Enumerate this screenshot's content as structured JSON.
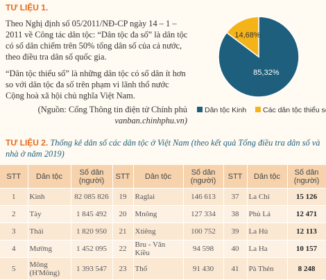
{
  "section1": {
    "title": "TƯ LIỆU 1.",
    "paragraphs": [
      "Theo Nghị định số 05/2011/NĐ-CP ngày 14 – 1 – 2011 về Công tác dân tộc: “Dân tộc đa số” là dân tộc có số dân chiếm trên 50% tổng dân số của cả nước, theo điều tra dân số quốc gia.",
      "“Dân tộc thiểu số” là những dân tộc có số dân ít hơn so với dân tộc đa số trên phạm vi lãnh thổ nước Cộng hoà xã hội chủ nghĩa Việt Nam."
    ],
    "source": "(Nguồn: Cổng Thông tin điện tử Chính phủ",
    "source_url": "vanban.chinhphu.vn)"
  },
  "chart_data": {
    "type": "pie",
    "categories": [
      "Dân tộc Kinh",
      "Các dân tộc thiểu số"
    ],
    "values": [
      85.32,
      14.68
    ],
    "value_labels": [
      "85,32%",
      "14,68%"
    ],
    "colors": [
      "#1d5f7c",
      "#f5b31a"
    ]
  },
  "section2": {
    "title": "TƯ LIỆU 2.",
    "caption": "Thống kê dân số các dân tộc ở Việt Nam (theo kết quả Tổng điều tra dân số và nhà ở năm 2019)"
  },
  "table": {
    "header": [
      "STT",
      "Dân tộc",
      "Số dân (người)",
      "STT",
      "Dân tộc",
      "Số dân (người)",
      "STT",
      "Dân tộc",
      "Số dân (người)"
    ],
    "rows": [
      [
        "1",
        "Kinh",
        "82 085 826",
        "19",
        "Raglai",
        "146 613",
        "37",
        "La Chí",
        "15 126"
      ],
      [
        "2",
        "Tày",
        "1 845 492",
        "20",
        "Mnông",
        "127 334",
        "38",
        "Phù Lá",
        "12 471"
      ],
      [
        "3",
        "Thái",
        "1 820 950",
        "21",
        "Xtiêng",
        "100 752",
        "39",
        "La Hủ",
        "12 113"
      ],
      [
        "4",
        "Mường",
        "1 452 095",
        "22",
        "Bru - Vân Kiều",
        "94 598",
        "40",
        "La Ha",
        "10 157"
      ],
      [
        "5",
        "Mông (H'Mông)",
        "1 393 547",
        "23",
        "Thổ",
        "91 430",
        "41",
        "Pà Thẻn",
        "8 248"
      ]
    ]
  }
}
